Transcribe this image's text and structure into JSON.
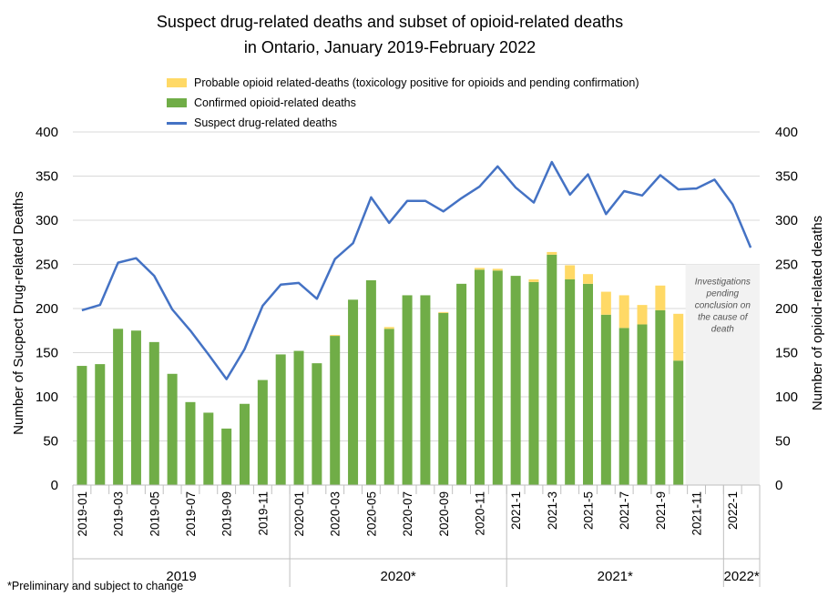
{
  "chart_data": {
    "type": "bar",
    "title_lines": [
      "Suspect drug-related deaths and subset of opioid-related deaths",
      "in Ontario, January 2019-February 2022"
    ],
    "ylabel_left": "Number of Sucpect Drug-related Deaths",
    "ylabel_right": "Number of opioid-related deaths",
    "ylim": [
      0,
      400
    ],
    "yticks": [
      0,
      50,
      100,
      150,
      200,
      250,
      300,
      350,
      400
    ],
    "categories": [
      "2019-01",
      "2019-02",
      "2019-03",
      "2019-04",
      "2019-05",
      "2019-06",
      "2019-07",
      "2019-08",
      "2019-09",
      "2019-10",
      "2019-11",
      "2019-12",
      "2020-01",
      "2020-02",
      "2020-03",
      "2020-04",
      "2020-05",
      "2020-06",
      "2020-07",
      "2020-08",
      "2020-09",
      "2020-10",
      "2020-11",
      "2020-12",
      "2021-1",
      "2021-2",
      "2021-3",
      "2021-4",
      "2021-5",
      "2021-6",
      "2021-7",
      "2021-8",
      "2021-9",
      "2021-10",
      "2021-11",
      "2021-12",
      "2022-1",
      "2022-2"
    ],
    "tick_labels": [
      "2019-01",
      "",
      "2019-03",
      "",
      "2019-05",
      "",
      "2019-07",
      "",
      "2019-09",
      "",
      "2019-11",
      "",
      "2020-01",
      "",
      "2020-03",
      "",
      "2020-05",
      "",
      "2020-07",
      "",
      "2020-09",
      "",
      "2020-11",
      "",
      "2021-1",
      "",
      "2021-3",
      "",
      "2021-5",
      "",
      "2021-7",
      "",
      "2021-9",
      "",
      "2021-11",
      "",
      "2022-1",
      ""
    ],
    "year_groups": [
      {
        "label": "2019",
        "start": 0,
        "end": 11
      },
      {
        "label": "2020*",
        "start": 12,
        "end": 23
      },
      {
        "label": "2021*",
        "start": 24,
        "end": 35
      },
      {
        "label": "2022*",
        "start": 36,
        "end": 37
      }
    ],
    "series": [
      {
        "name": "Confirmed opioid-related deaths",
        "kind": "bar",
        "color": "#70AD47",
        "values": [
          135,
          137,
          177,
          175,
          162,
          126,
          94,
          82,
          64,
          92,
          119,
          148,
          152,
          138,
          169,
          210,
          232,
          177,
          215,
          215,
          195,
          228,
          244,
          243,
          237,
          230,
          261,
          233,
          228,
          193,
          178,
          182,
          198,
          141,
          null,
          null,
          null,
          null
        ]
      },
      {
        "name": "Probable opioid related-deaths (toxicology positive for opioids and pending confirmation)",
        "kind": "bar-stacked",
        "color": "#FFD966",
        "values": [
          0,
          0,
          0,
          0,
          0,
          0,
          0,
          0,
          0,
          0,
          0,
          0,
          0,
          0,
          1,
          0,
          0,
          2,
          0,
          0,
          1,
          0,
          2,
          2,
          0,
          3,
          3,
          16,
          11,
          26,
          37,
          22,
          28,
          53,
          null,
          null,
          null,
          null
        ]
      },
      {
        "name": "Suspect drug-related deaths",
        "kind": "line",
        "color": "#4472C4",
        "values": [
          198,
          204,
          252,
          257,
          237,
          199,
          175,
          148,
          120,
          154,
          203,
          227,
          229,
          211,
          256,
          274,
          326,
          297,
          322,
          322,
          310,
          325,
          338,
          361,
          337,
          320,
          366,
          329,
          352,
          307,
          333,
          328,
          351,
          335,
          336,
          346,
          318,
          269
        ]
      }
    ],
    "annotation": "Investigations pending conclusion on the cause of death"
  },
  "footnote": "*Preliminary and subject to change"
}
